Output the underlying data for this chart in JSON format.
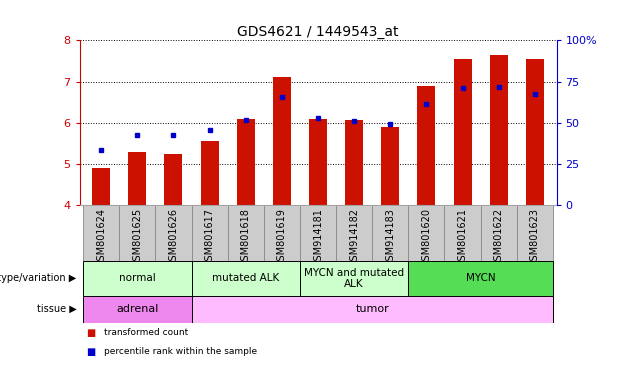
{
  "title": "GDS4621 / 1449543_at",
  "samples": [
    "GSM801624",
    "GSM801625",
    "GSM801626",
    "GSM801617",
    "GSM801618",
    "GSM801619",
    "GSM914181",
    "GSM914182",
    "GSM914183",
    "GSM801620",
    "GSM801621",
    "GSM801622",
    "GSM801623"
  ],
  "red_bars": [
    4.9,
    5.3,
    5.25,
    5.55,
    6.1,
    7.12,
    6.1,
    6.08,
    5.9,
    6.9,
    7.55,
    7.65,
    7.55
  ],
  "blue_dots": [
    5.35,
    5.7,
    5.7,
    5.83,
    6.08,
    6.62,
    6.12,
    6.05,
    5.97,
    6.45,
    6.85,
    6.87,
    6.7
  ],
  "ylim": [
    4.0,
    8.0
  ],
  "yticks_left": [
    4,
    5,
    6,
    7,
    8
  ],
  "yticks_right_labels": [
    "0",
    "25",
    "50",
    "75",
    "100%"
  ],
  "ylabel_left_color": "#cc0000",
  "ylabel_right_color": "#0000cc",
  "bar_bottom": 4.0,
  "bar_color": "#cc1100",
  "dot_color": "#0000cc",
  "geno_groups": [
    {
      "label": "normal",
      "start": 0,
      "end": 3,
      "color": "#ccffcc"
    },
    {
      "label": "mutated ALK",
      "start": 3,
      "end": 6,
      "color": "#ccffcc"
    },
    {
      "label": "MYCN and mutated\nALK",
      "start": 6,
      "end": 9,
      "color": "#ccffcc"
    },
    {
      "label": "MYCN",
      "start": 9,
      "end": 13,
      "color": "#55dd55"
    }
  ],
  "tissue_groups": [
    {
      "label": "adrenal",
      "start": 0,
      "end": 3,
      "color": "#ee88ee"
    },
    {
      "label": "tumor",
      "start": 3,
      "end": 13,
      "color": "#ffbbff"
    }
  ],
  "sample_box_color": "#cccccc",
  "sample_box_edge": "#888888",
  "title_fontsize": 10,
  "bar_fontsize": 7,
  "label_fontsize": 7,
  "geno_fontsize": 7.5,
  "tissue_fontsize": 8
}
